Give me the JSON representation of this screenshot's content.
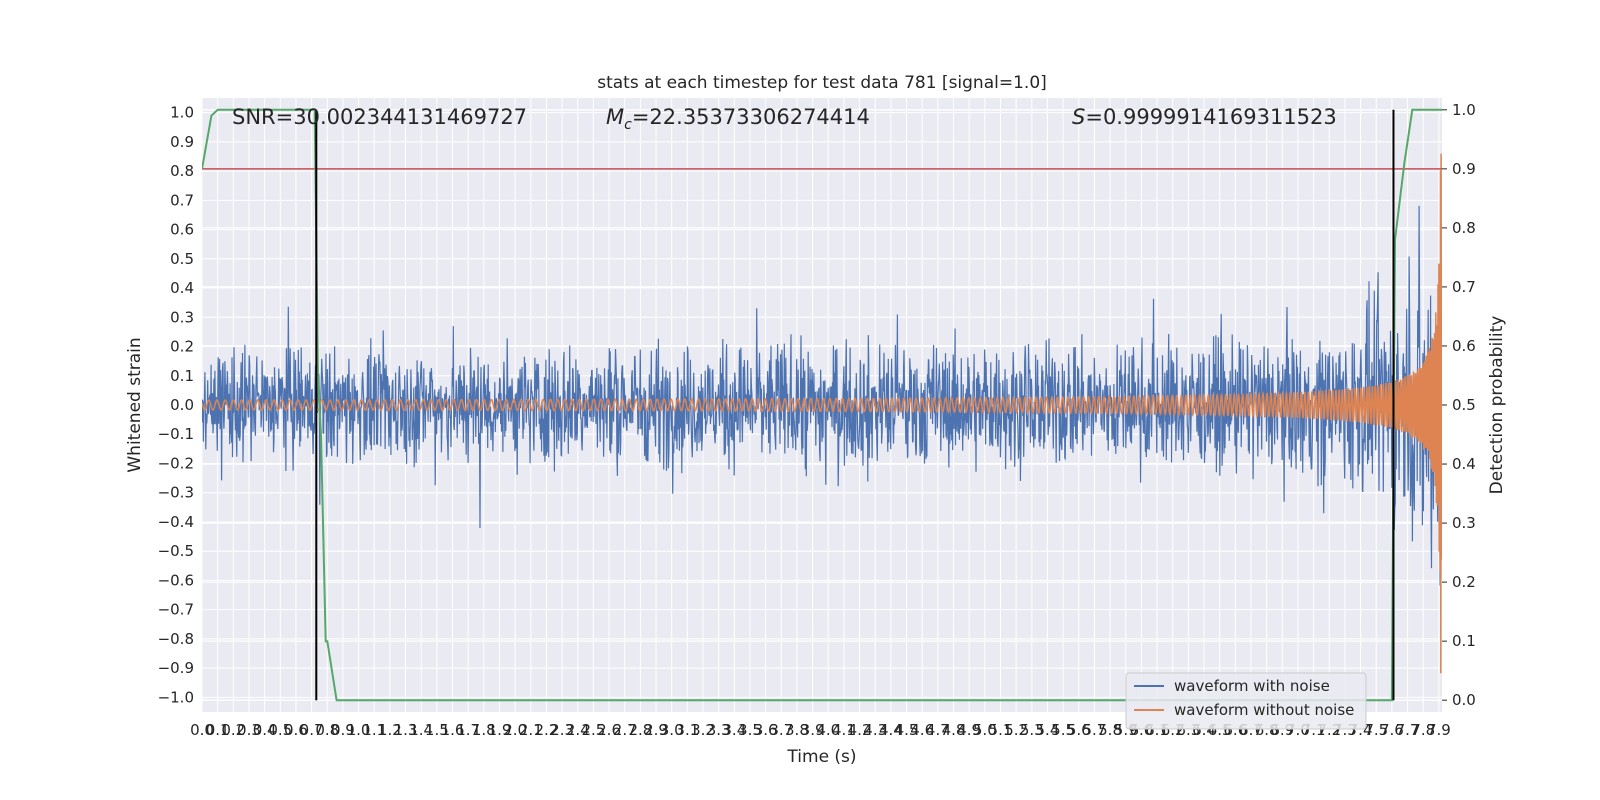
{
  "chart_data": {
    "type": "line",
    "title": "stats at each timestep for test data 781 [signal=1.0]",
    "xlabel": "Time (s)",
    "ylabel": "Whitened strain",
    "ylabel_right": "Detection probability",
    "xlim": [
      0.0,
      7.92
    ],
    "ylim": [
      -1.05,
      1.05
    ],
    "ylim_right": [
      -0.02,
      1.02
    ],
    "x_ticks": [
      "0.0",
      "0.1",
      "0.2",
      "0.3",
      "0.4",
      "0.5",
      "0.6",
      "0.7",
      "0.8",
      "0.9",
      "1.0",
      "1.1",
      "1.2",
      "1.3",
      "1.4",
      "1.5",
      "1.6",
      "1.7",
      "1.8",
      "1.9",
      "2.0",
      "2.1",
      "2.2",
      "2.3",
      "2.4",
      "2.5",
      "2.6",
      "2.7",
      "2.8",
      "2.9",
      "3.0",
      "3.1",
      "3.2",
      "3.3",
      "3.4",
      "3.5",
      "3.6",
      "3.7",
      "3.8",
      "3.9",
      "4.0",
      "4.1",
      "4.2",
      "4.3",
      "4.4",
      "4.5",
      "4.6",
      "4.7",
      "4.8",
      "4.9",
      "5.0",
      "5.1",
      "5.2",
      "5.3",
      "5.4",
      "5.5",
      "5.6",
      "5.7",
      "5.8",
      "5.9",
      "6.0",
      "6.1",
      "6.2",
      "6.3",
      "6.4",
      "6.5",
      "6.6",
      "6.7",
      "6.8",
      "6.9",
      "7.0",
      "7.1",
      "7.2",
      "7.3",
      "7.4",
      "7.5",
      "7.6",
      "7.7",
      "7.8",
      "7.9"
    ],
    "y_ticks": [
      "1.0",
      "0.9",
      "0.8",
      "0.7",
      "0.6",
      "0.5",
      "0.4",
      "0.3",
      "0.2",
      "0.1",
      "0.0",
      "−0.1",
      "−0.2",
      "−0.3",
      "−0.4",
      "−0.5",
      "−0.6",
      "−0.7",
      "−0.8",
      "−0.9",
      "−1.0"
    ],
    "y_ticks_right": [
      "1.0",
      "0.9",
      "0.8",
      "0.7",
      "0.6",
      "0.5",
      "0.4",
      "0.3",
      "0.2",
      "0.1",
      "0.0"
    ],
    "annotations": {
      "snr": "SNR=30.002344131469727",
      "mc_value": "=22.35373306274414",
      "s_value": "=0.9999914169311523",
      "mc_symbol": "M",
      "mc_sub": "c",
      "s_symbol": "S"
    },
    "series": [
      {
        "name": "waveform with noise",
        "color": "#4c72b0",
        "noise_envelope": [
          [
            0.0,
            0.3
          ],
          [
            0.8,
            0.3
          ],
          [
            3.0,
            0.32
          ],
          [
            5.5,
            0.32
          ],
          [
            6.8,
            0.34
          ],
          [
            7.3,
            0.4
          ],
          [
            7.6,
            0.55
          ],
          [
            7.8,
            0.8
          ],
          [
            7.92,
            0.95
          ]
        ]
      },
      {
        "name": "waveform without noise",
        "color": "#dd8452",
        "chirp": {
          "merger_time": 7.92,
          "amplitude_start": 0.008,
          "amplitude_end": 0.95
        }
      },
      {
        "name": "detection probability",
        "axis": "right",
        "color": "#55a868",
        "x": [
          0.0,
          0.06,
          0.1,
          0.2,
          0.72,
          0.74,
          0.76,
          0.79,
          0.8,
          0.86,
          5.9,
          6.4,
          7.6,
          7.61,
          7.62,
          7.68,
          7.73,
          7.8,
          7.92
        ],
        "y": [
          0.9,
          0.99,
          1.0,
          1.0,
          1.0,
          0.55,
          0.45,
          0.1,
          0.1,
          0.0,
          0.0,
          0.0,
          0.0,
          0.45,
          0.78,
          0.91,
          1.0,
          1.0,
          1.0
        ]
      }
    ],
    "threshold": {
      "axis": "right",
      "value": 0.9,
      "color": "#c44e52"
    },
    "vertical_markers": [
      {
        "x": 0.73,
        "color": "#000000"
      },
      {
        "x": 7.61,
        "color": "#000000"
      }
    ],
    "legend": {
      "placement": "lower-right",
      "entries": [
        "waveform with noise",
        "waveform without noise"
      ]
    },
    "grid": true,
    "background": "#eaeaf2"
  }
}
